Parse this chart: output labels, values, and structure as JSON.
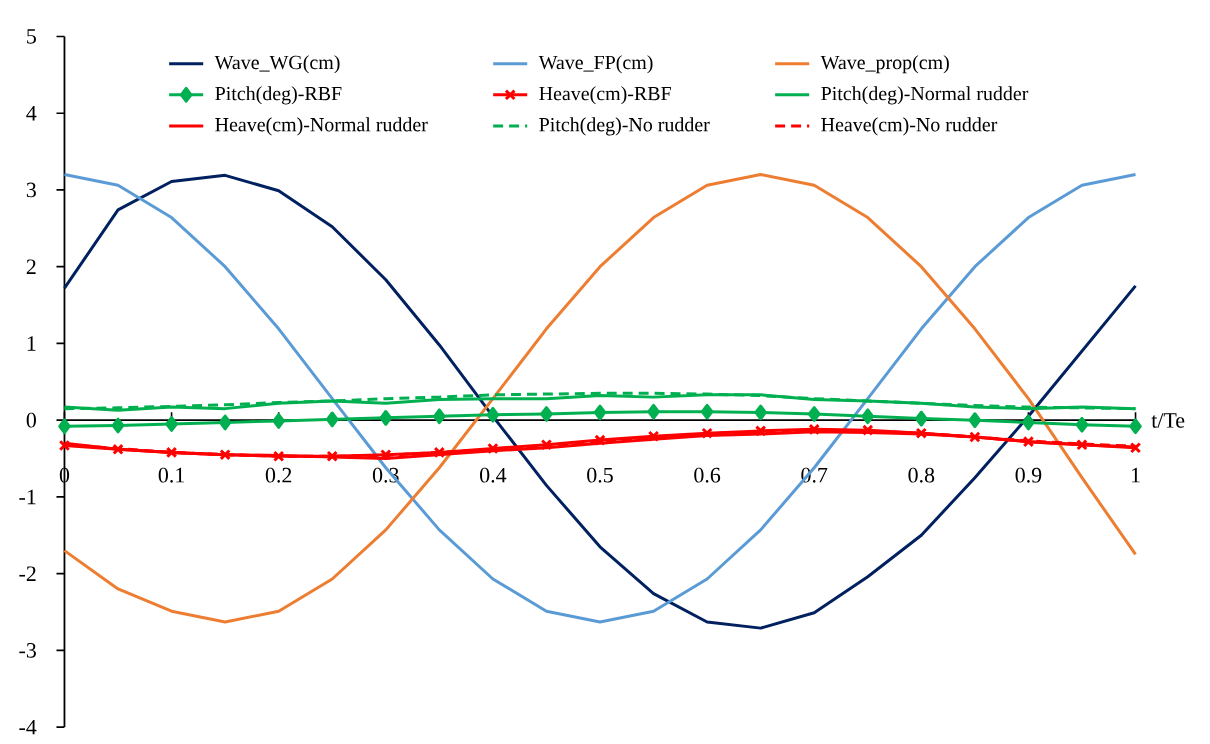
{
  "chart_data": {
    "type": "line",
    "xlabel": "t/Te",
    "x": [
      0,
      0.05,
      0.1,
      0.15,
      0.2,
      0.25,
      0.3,
      0.35,
      0.4,
      0.45,
      0.5,
      0.55,
      0.6,
      0.65,
      0.7,
      0.75,
      0.8,
      0.85,
      0.9,
      0.95,
      1
    ],
    "xlim": [
      0,
      1
    ],
    "xticks": [
      0,
      0.1,
      0.2,
      0.3,
      0.4,
      0.5,
      0.6,
      0.7,
      0.8,
      0.9,
      1
    ],
    "ylim": [
      -4,
      5
    ],
    "yticks": [
      -4,
      -3,
      -2,
      -1,
      0,
      1,
      2,
      3,
      4,
      5
    ],
    "grid": false,
    "legend": "top",
    "series": [
      {
        "name": "Wave_WG(cm)",
        "color": "#002060",
        "marker": "none",
        "line_style": "solid",
        "values": [
          1.72,
          2.74,
          3.11,
          3.19,
          2.99,
          2.52,
          1.83,
          0.98,
          0.05,
          -0.85,
          -1.65,
          -2.26,
          -2.63,
          -2.71,
          -2.51,
          -2.04,
          -1.5,
          -0.75,
          0.05,
          0.9,
          1.75
        ]
      },
      {
        "name": "Wave_FP(cm)",
        "color": "#5b9bd5",
        "marker": "none",
        "line_style": "solid",
        "values": [
          3.2,
          3.06,
          2.64,
          2.0,
          1.19,
          0.28,
          -0.62,
          -1.43,
          -2.07,
          -2.49,
          -2.63,
          -2.49,
          -2.07,
          -1.43,
          -0.62,
          0.28,
          1.19,
          2.0,
          2.64,
          3.06,
          3.2
        ]
      },
      {
        "name": "Wave_prop(cm)",
        "color": "#ed7d31",
        "marker": "none",
        "line_style": "solid",
        "values": [
          -1.7,
          -2.2,
          -2.49,
          -2.63,
          -2.49,
          -2.07,
          -1.43,
          -0.62,
          0.28,
          1.19,
          2.0,
          2.64,
          3.06,
          3.2,
          3.06,
          2.64,
          2.0,
          1.19,
          0.28,
          -0.75,
          -1.75
        ]
      },
      {
        "name": "Pitch(deg)-RBF",
        "color": "#00b050",
        "marker": "diamond",
        "line_style": "solid",
        "values": [
          -0.08,
          -0.07,
          -0.05,
          -0.03,
          -0.01,
          0.01,
          0.03,
          0.05,
          0.07,
          0.08,
          0.1,
          0.11,
          0.11,
          0.1,
          0.08,
          0.05,
          0.02,
          0.0,
          -0.03,
          -0.06,
          -0.08
        ]
      },
      {
        "name": "Heave(cm)-RBF",
        "color": "#ff0000",
        "marker": "cross",
        "line_style": "solid",
        "values": [
          -0.33,
          -0.38,
          -0.42,
          -0.45,
          -0.47,
          -0.47,
          -0.45,
          -0.42,
          -0.37,
          -0.32,
          -0.26,
          -0.21,
          -0.17,
          -0.14,
          -0.12,
          -0.13,
          -0.17,
          -0.22,
          -0.28,
          -0.32,
          -0.36
        ]
      },
      {
        "name": "Pitch(deg)-Normal rudder",
        "color": "#00b050",
        "marker": "none",
        "line_style": "solid",
        "values": [
          0.17,
          0.13,
          0.17,
          0.15,
          0.22,
          0.25,
          0.22,
          0.27,
          0.28,
          0.28,
          0.32,
          0.3,
          0.33,
          0.33,
          0.27,
          0.25,
          0.22,
          0.17,
          0.15,
          0.17,
          0.15
        ]
      },
      {
        "name": "Heave(cm)-Normal rudder",
        "color": "#ff0000",
        "marker": "none",
        "line_style": "solid",
        "values": [
          -0.3,
          -0.38,
          -0.42,
          -0.45,
          -0.46,
          -0.48,
          -0.5,
          -0.45,
          -0.4,
          -0.36,
          -0.3,
          -0.25,
          -0.2,
          -0.18,
          -0.15,
          -0.16,
          -0.18,
          -0.22,
          -0.28,
          -0.32,
          -0.35
        ]
      },
      {
        "name": "Pitch(deg)-No rudder",
        "color": "#00b050",
        "marker": "none",
        "line_style": "dashed",
        "values": [
          0.15,
          0.16,
          0.18,
          0.2,
          0.23,
          0.25,
          0.28,
          0.3,
          0.33,
          0.34,
          0.35,
          0.35,
          0.34,
          0.32,
          0.28,
          0.25,
          0.22,
          0.19,
          0.17,
          0.16,
          0.15
        ]
      },
      {
        "name": "Heave(cm)-No rudder",
        "color": "#ff0000",
        "marker": "none",
        "line_style": "dashed",
        "values": [
          -0.32,
          -0.37,
          -0.42,
          -0.45,
          -0.47,
          -0.47,
          -0.46,
          -0.42,
          -0.38,
          -0.33,
          -0.27,
          -0.22,
          -0.18,
          -0.15,
          -0.13,
          -0.14,
          -0.17,
          -0.22,
          -0.27,
          -0.31,
          -0.34
        ]
      }
    ]
  }
}
